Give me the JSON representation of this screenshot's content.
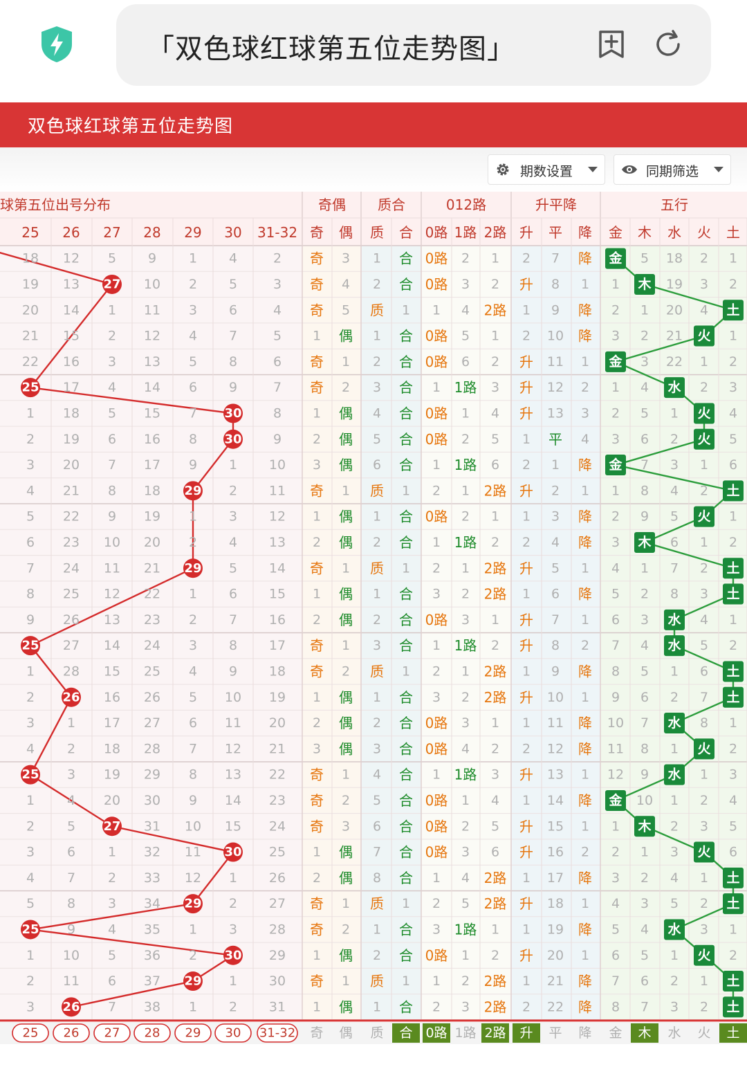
{
  "browser": {
    "url_text": "「双色球红球第五位走势图」",
    "shield_icon": "shield-bolt-icon",
    "add_bookmark_icon": "bookmark-plus-icon",
    "reload_icon": "reload-icon"
  },
  "banner": {
    "title": "双色球红球第五位走势图"
  },
  "toolbar": {
    "period_settings": "期数设置",
    "same_period_filter": "同期筛选"
  },
  "table": {
    "group_headers": [
      "球第五位出号分布",
      "奇偶",
      "质合",
      "012路",
      "升平降",
      "五行"
    ],
    "number_headers": [
      "25",
      "26",
      "27",
      "28",
      "29",
      "30",
      "31-32"
    ],
    "sub_headers": [
      "奇",
      "偶",
      "质",
      "合",
      "0路",
      "1路",
      "2路",
      "升",
      "平",
      "降",
      "金",
      "木",
      "水",
      "火",
      "土"
    ],
    "rows": [
      [
        "18",
        "12",
        "5",
        "9",
        "1",
        "4",
        "2",
        "奇",
        "3",
        "1",
        "合",
        "0路",
        "2",
        "1",
        "2",
        "7",
        "降",
        "金",
        "5",
        "18",
        "2",
        "1"
      ],
      [
        "19",
        "13",
        "27",
        "10",
        "2",
        "5",
        "3",
        "奇",
        "4",
        "2",
        "合",
        "0路",
        "3",
        "2",
        "升",
        "8",
        "1",
        "1",
        "木",
        "19",
        "3",
        "2"
      ],
      [
        "20",
        "14",
        "1",
        "11",
        "3",
        "6",
        "4",
        "奇",
        "5",
        "质",
        "1",
        "1",
        "4",
        "2路",
        "1",
        "9",
        "降",
        "2",
        "1",
        "20",
        "4",
        "土"
      ],
      [
        "21",
        "15",
        "2",
        "12",
        "4",
        "7",
        "5",
        "1",
        "偶",
        "1",
        "合",
        "0路",
        "5",
        "1",
        "2",
        "10",
        "降",
        "3",
        "2",
        "21",
        "火",
        "1"
      ],
      [
        "22",
        "16",
        "3",
        "13",
        "5",
        "8",
        "6",
        "奇",
        "1",
        "2",
        "合",
        "0路",
        "6",
        "2",
        "升",
        "11",
        "1",
        "金",
        "3",
        "22",
        "1",
        "2"
      ],
      [
        "25",
        "17",
        "4",
        "14",
        "6",
        "9",
        "7",
        "奇",
        "2",
        "3",
        "合",
        "1",
        "1路",
        "3",
        "升",
        "12",
        "2",
        "1",
        "4",
        "水",
        "2",
        "3"
      ],
      [
        "1",
        "18",
        "5",
        "15",
        "7",
        "30",
        "8",
        "1",
        "偶",
        "4",
        "合",
        "0路",
        "1",
        "4",
        "升",
        "13",
        "3",
        "2",
        "5",
        "1",
        "火",
        "4"
      ],
      [
        "2",
        "19",
        "6",
        "16",
        "8",
        "30",
        "9",
        "2",
        "偶",
        "5",
        "合",
        "0路",
        "2",
        "5",
        "1",
        "平",
        "4",
        "3",
        "6",
        "2",
        "火",
        "5"
      ],
      [
        "3",
        "20",
        "7",
        "17",
        "9",
        "1",
        "10",
        "3",
        "偶",
        "6",
        "合",
        "1",
        "1路",
        "6",
        "2",
        "1",
        "降",
        "金",
        "7",
        "3",
        "1",
        "6"
      ],
      [
        "4",
        "21",
        "8",
        "18",
        "29",
        "2",
        "11",
        "奇",
        "1",
        "质",
        "1",
        "2",
        "1",
        "2路",
        "升",
        "2",
        "1",
        "1",
        "8",
        "4",
        "2",
        "土"
      ],
      [
        "5",
        "22",
        "9",
        "19",
        "1",
        "3",
        "12",
        "1",
        "偶",
        "1",
        "合",
        "0路",
        "2",
        "1",
        "1",
        "3",
        "降",
        "2",
        "9",
        "5",
        "火",
        "1"
      ],
      [
        "6",
        "23",
        "10",
        "20",
        "2",
        "4",
        "13",
        "2",
        "偶",
        "2",
        "合",
        "1",
        "1路",
        "2",
        "2",
        "4",
        "降",
        "3",
        "木",
        "6",
        "1",
        "2"
      ],
      [
        "7",
        "24",
        "11",
        "21",
        "29",
        "5",
        "14",
        "奇",
        "1",
        "质",
        "1",
        "2",
        "1",
        "2路",
        "升",
        "5",
        "1",
        "4",
        "1",
        "7",
        "2",
        "土"
      ],
      [
        "8",
        "25",
        "12",
        "22",
        "1",
        "6",
        "15",
        "1",
        "偶",
        "1",
        "合",
        "3",
        "2",
        "2路",
        "1",
        "6",
        "降",
        "5",
        "2",
        "8",
        "3",
        "土"
      ],
      [
        "9",
        "26",
        "13",
        "23",
        "2",
        "7",
        "16",
        "2",
        "偶",
        "2",
        "合",
        "0路",
        "3",
        "1",
        "升",
        "7",
        "1",
        "6",
        "3",
        "水",
        "4",
        "1"
      ],
      [
        "25",
        "27",
        "14",
        "24",
        "3",
        "8",
        "17",
        "奇",
        "1",
        "3",
        "合",
        "1",
        "1路",
        "2",
        "升",
        "8",
        "2",
        "7",
        "4",
        "水",
        "5",
        "2"
      ],
      [
        "1",
        "28",
        "15",
        "25",
        "4",
        "9",
        "18",
        "奇",
        "2",
        "质",
        "1",
        "2",
        "1",
        "2路",
        "1",
        "9",
        "降",
        "8",
        "5",
        "1",
        "6",
        "土"
      ],
      [
        "2",
        "26",
        "16",
        "26",
        "5",
        "10",
        "19",
        "1",
        "偶",
        "1",
        "合",
        "3",
        "2",
        "2路",
        "升",
        "10",
        "1",
        "9",
        "6",
        "2",
        "7",
        "土"
      ],
      [
        "3",
        "1",
        "17",
        "27",
        "6",
        "11",
        "20",
        "2",
        "偶",
        "2",
        "合",
        "0路",
        "3",
        "1",
        "1",
        "11",
        "降",
        "10",
        "7",
        "水",
        "8",
        "1"
      ],
      [
        "4",
        "2",
        "18",
        "28",
        "7",
        "12",
        "21",
        "3",
        "偶",
        "3",
        "合",
        "0路",
        "4",
        "2",
        "2",
        "12",
        "降",
        "11",
        "8",
        "1",
        "火",
        "2"
      ],
      [
        "25",
        "3",
        "19",
        "29",
        "8",
        "13",
        "22",
        "奇",
        "1",
        "4",
        "合",
        "1",
        "1路",
        "3",
        "升",
        "13",
        "1",
        "12",
        "9",
        "水",
        "1",
        "3"
      ],
      [
        "1",
        "4",
        "20",
        "30",
        "9",
        "14",
        "23",
        "奇",
        "2",
        "5",
        "合",
        "0路",
        "1",
        "4",
        "1",
        "14",
        "降",
        "金",
        "10",
        "1",
        "2",
        "4"
      ],
      [
        "2",
        "5",
        "27",
        "31",
        "10",
        "15",
        "24",
        "奇",
        "3",
        "6",
        "合",
        "0路",
        "2",
        "5",
        "升",
        "15",
        "1",
        "1",
        "木",
        "2",
        "3",
        "5"
      ],
      [
        "3",
        "6",
        "1",
        "32",
        "11",
        "30",
        "25",
        "1",
        "偶",
        "7",
        "合",
        "0路",
        "3",
        "6",
        "升",
        "16",
        "2",
        "2",
        "1",
        "3",
        "火",
        "6"
      ],
      [
        "4",
        "7",
        "2",
        "33",
        "12",
        "1",
        "26",
        "2",
        "偶",
        "8",
        "合",
        "1",
        "4",
        "2路",
        "1",
        "17",
        "降",
        "3",
        "2",
        "4",
        "1",
        "土"
      ],
      [
        "5",
        "8",
        "3",
        "34",
        "29",
        "2",
        "27",
        "奇",
        "1",
        "质",
        "1",
        "2",
        "5",
        "2路",
        "升",
        "18",
        "1",
        "4",
        "3",
        "5",
        "2",
        "土"
      ],
      [
        "25",
        "9",
        "4",
        "35",
        "1",
        "3",
        "28",
        "奇",
        "2",
        "1",
        "合",
        "3",
        "1路",
        "1",
        "1",
        "19",
        "降",
        "5",
        "4",
        "水",
        "3",
        "1"
      ],
      [
        "1",
        "10",
        "5",
        "36",
        "2",
        "30",
        "29",
        "1",
        "偶",
        "2",
        "合",
        "0路",
        "1",
        "2",
        "升",
        "20",
        "1",
        "6",
        "5",
        "1",
        "火",
        "2"
      ],
      [
        "2",
        "11",
        "6",
        "37",
        "29",
        "1",
        "30",
        "奇",
        "1",
        "质",
        "1",
        "1",
        "2",
        "2路",
        "1",
        "21",
        "降",
        "7",
        "6",
        "2",
        "1",
        "土"
      ],
      [
        "3",
        "26",
        "7",
        "38",
        "1",
        "2",
        "31",
        "1",
        "偶",
        "1",
        "合",
        "2",
        "3",
        "2路",
        "2",
        "22",
        "降",
        "8",
        "7",
        "3",
        "2",
        "土"
      ]
    ],
    "hits": [
      null,
      "27",
      null,
      null,
      null,
      "25",
      "30",
      "30",
      null,
      "29",
      null,
      null,
      "29",
      null,
      null,
      "25",
      null,
      "26",
      null,
      null,
      "25",
      null,
      "27",
      "30",
      null,
      "29",
      "25",
      "30",
      "29",
      "26"
    ],
    "footer": [
      "25",
      "26",
      "27",
      "28",
      "29",
      "30",
      "31-32",
      "奇",
      "偶",
      "质",
      "合",
      "0路",
      "1路",
      "2路",
      "升",
      "平",
      "降",
      "金",
      "木",
      "水",
      "火",
      "土"
    ],
    "footer_selected": [
      false,
      false,
      false,
      false,
      false,
      false,
      false,
      false,
      false,
      false,
      true,
      true,
      false,
      true,
      true,
      false,
      false,
      false,
      true,
      false,
      false,
      true
    ]
  },
  "colors": {
    "accent_red": "#d83535",
    "ball_red": "#d42b2b",
    "line_red": "#d42b2b",
    "element_green": "#1a8a3a",
    "line_green": "#2c9d3c",
    "orange_text": "#e6760e",
    "green_text": "#1d8b2a",
    "muted_text": "#b0b0b0"
  }
}
